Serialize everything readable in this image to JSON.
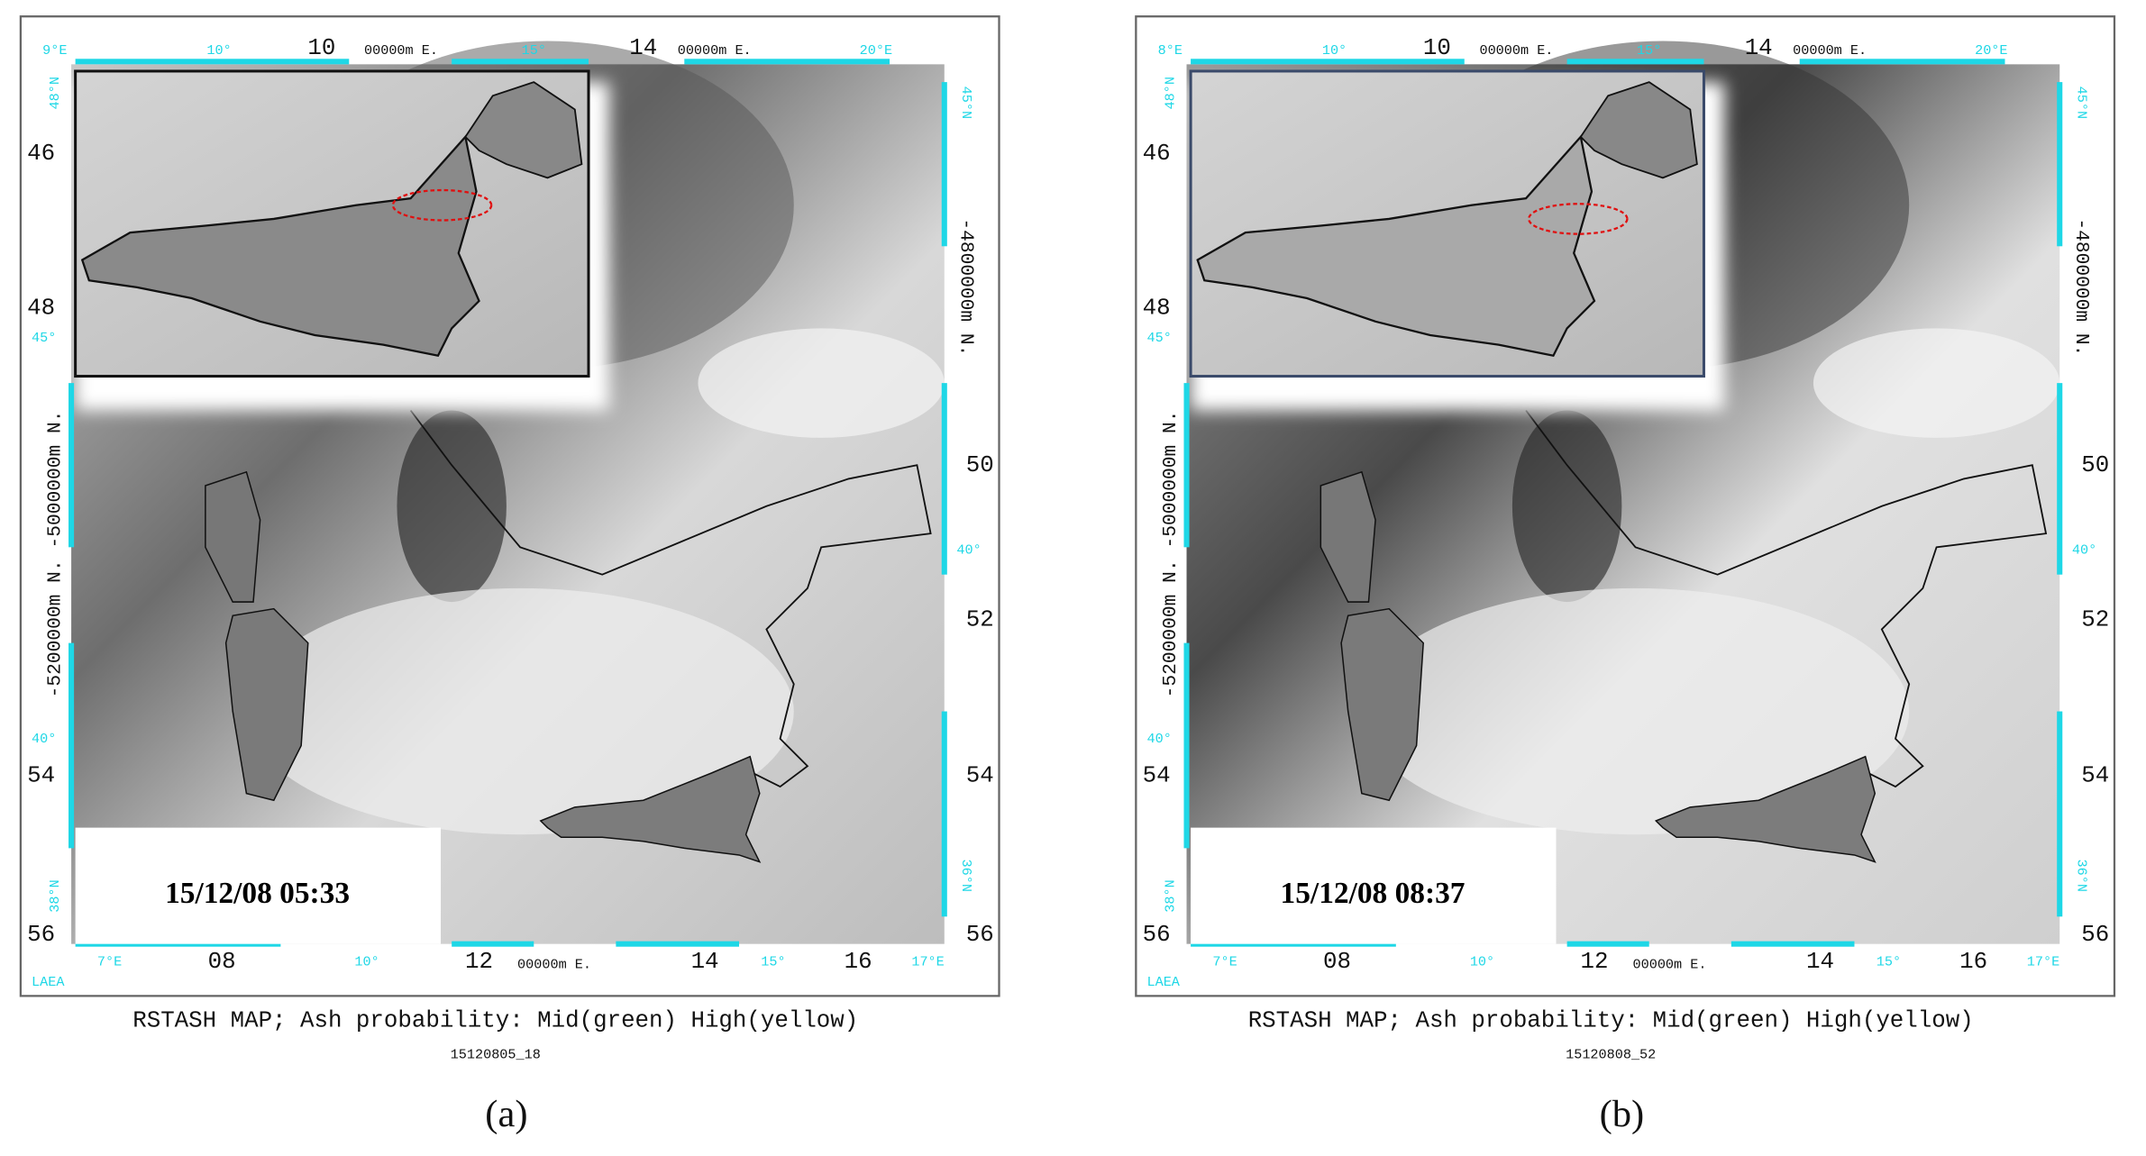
{
  "figure": {
    "panels": [
      {
        "top_labels": [
          "9°E",
          "10°",
          "10",
          "00000m E.",
          "15°",
          "14",
          "00000m E.",
          "20°E"
        ],
        "left_labels": [
          "48°N",
          "46",
          "48",
          "45°",
          "-5200000m N. -5000000m N.",
          "40°",
          "54",
          "38°N",
          "56"
        ],
        "right_labels": [
          "45°N",
          "-4800000m N.",
          "50",
          "40°",
          "52",
          "54",
          "36°N",
          "56"
        ],
        "bottom_labels": [
          "7°E",
          "08",
          "10°",
          "12",
          "00000m E.",
          "14",
          "15°",
          "16",
          "17°E"
        ],
        "corner_label": "LAEA",
        "timestamp": "15/12/08 05:33",
        "caption": "RSTASH MAP; Ash probability: Mid(green) High(yellow)",
        "code": "15120805_18",
        "panel_label": "(a)"
      },
      {
        "top_labels": [
          "8°E",
          "10°",
          "10",
          "00000m E.",
          "15°",
          "14",
          "00000m E.",
          "20°E"
        ],
        "left_labels": [
          "48°N",
          "46",
          "48",
          "45°",
          "-5200000m N. -5000000m N.",
          "40°",
          "54",
          "38°N",
          "56"
        ],
        "right_labels": [
          "45°N",
          "-4800000m N.",
          "50",
          "40°",
          "52",
          "54",
          "36°N",
          "56"
        ],
        "bottom_labels": [
          "7°E",
          "08",
          "10°",
          "12",
          "00000m E.",
          "14",
          "15°",
          "16",
          "17°E"
        ],
        "corner_label": "LAEA",
        "timestamp": "15/12/08 08:37",
        "caption": "RSTASH MAP; Ash probability: Mid(green) High(yellow)",
        "code": "15120808_52",
        "panel_label": "(b)"
      }
    ]
  }
}
